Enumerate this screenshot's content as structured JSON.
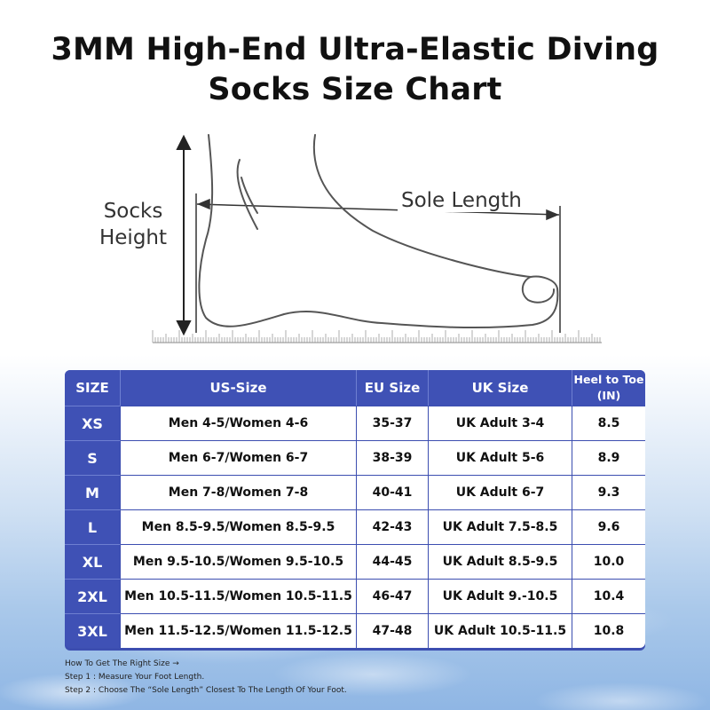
{
  "title": {
    "line1": "3MM High-End Ultra-Elastic Diving",
    "line2": "Socks Size Chart"
  },
  "diagram": {
    "height_label_line1": "Socks",
    "height_label_line2": "Height",
    "length_label": "Sole Length"
  },
  "table": {
    "headers": {
      "size": "SIZE",
      "us": "US-Size",
      "eu": "EU Size",
      "uk": "UK Size",
      "heel_line1": "Heel to Toe",
      "heel_line2": "(IN)"
    },
    "rows": [
      {
        "size": "XS",
        "us": "Men 4-5/Women 4-6",
        "eu": "35-37",
        "uk": "UK Adult 3-4",
        "heel": "8.5"
      },
      {
        "size": "S",
        "us": "Men 6-7/Women 6-7",
        "eu": "38-39",
        "uk": "UK Adult 5-6",
        "heel": "8.9"
      },
      {
        "size": "M",
        "us": "Men 7-8/Women 7-8",
        "eu": "40-41",
        "uk": "UK Adult 6-7",
        "heel": "9.3"
      },
      {
        "size": "L",
        "us": "Men 8.5-9.5/Women 8.5-9.5",
        "eu": "42-43",
        "uk": "UK Adult 7.5-8.5",
        "heel": "9.6"
      },
      {
        "size": "XL",
        "us": "Men 9.5-10.5/Women 9.5-10.5",
        "eu": "44-45",
        "uk": "UK Adult 8.5-9.5",
        "heel": "10.0"
      },
      {
        "size": "2XL",
        "us": "Men 10.5-11.5/Women 10.5-11.5",
        "eu": "46-47",
        "uk": "UK Adult 9.-10.5",
        "heel": "10.4"
      },
      {
        "size": "3XL",
        "us": "Men 11.5-12.5/Women 11.5-12.5",
        "eu": "47-48",
        "uk": "UK Adult 10.5-11.5",
        "heel": "10.8"
      }
    ]
  },
  "instructions": {
    "heading": "How To Get The Right Size →",
    "step1": "Step 1 : Measure Your Foot Length.",
    "step2": "Step 2 : Choose The “Sole Length” Closest To The Length Of Your Foot."
  }
}
